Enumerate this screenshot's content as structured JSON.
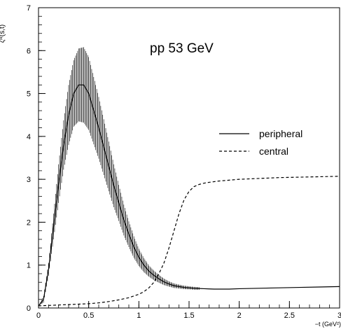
{
  "chart_data": {
    "type": "line",
    "title": "",
    "annotation": "pp 53 GeV",
    "xlabel": "−t (GeV²)",
    "ylabel": "ζᴿ(s,t)",
    "xlim": [
      0,
      3
    ],
    "ylim": [
      0,
      7
    ],
    "x_ticks": [
      0,
      0.5,
      1,
      1.5,
      2,
      2.5,
      3
    ],
    "x_tick_labels": [
      "0",
      "0.5",
      "1",
      "1.5",
      "2",
      "2.5",
      "3"
    ],
    "y_ticks": [
      0,
      1,
      2,
      3,
      4,
      5,
      6,
      7
    ],
    "y_tick_labels": [
      "0",
      "1",
      "2",
      "3",
      "4",
      "5",
      "6",
      "7"
    ],
    "grid": false,
    "legend_position": "center-right",
    "series": [
      {
        "name": "peripheral",
        "style": "solid",
        "color": "#000000",
        "x": [
          0.0,
          0.05,
          0.1,
          0.15,
          0.2,
          0.25,
          0.3,
          0.35,
          0.4,
          0.45,
          0.5,
          0.55,
          0.6,
          0.65,
          0.7,
          0.75,
          0.8,
          0.85,
          0.9,
          0.95,
          1.0,
          1.05,
          1.1,
          1.15,
          1.2,
          1.25,
          1.3,
          1.35,
          1.4,
          1.45,
          1.5,
          1.55,
          1.6,
          1.65,
          1.7,
          1.75,
          1.8,
          1.85,
          1.9,
          2.0,
          2.2,
          2.4,
          2.6,
          2.8,
          3.0
        ],
        "y": [
          0.05,
          0.2,
          0.9,
          1.9,
          2.9,
          3.8,
          4.5,
          5.0,
          5.2,
          5.2,
          5.0,
          4.6,
          4.2,
          3.75,
          3.3,
          2.85,
          2.45,
          2.05,
          1.72,
          1.42,
          1.18,
          1.0,
          0.86,
          0.76,
          0.68,
          0.61,
          0.56,
          0.52,
          0.5,
          0.48,
          0.47,
          0.46,
          0.455,
          0.45,
          0.445,
          0.44,
          0.44,
          0.44,
          0.44,
          0.45,
          0.46,
          0.47,
          0.48,
          0.49,
          0.5
        ],
        "error_bars": {
          "x_range": [
            0.02,
            1.6
          ],
          "step": 0.01,
          "half_width": [
            [
              0.0,
              0.0
            ],
            [
              0.1,
              0.15
            ],
            [
              0.2,
              0.45
            ],
            [
              0.3,
              0.7
            ],
            [
              0.4,
              0.85
            ],
            [
              0.45,
              0.88
            ],
            [
              0.5,
              0.85
            ],
            [
              0.6,
              0.72
            ],
            [
              0.7,
              0.58
            ],
            [
              0.8,
              0.42
            ],
            [
              0.9,
              0.3
            ],
            [
              1.0,
              0.2
            ],
            [
              1.1,
              0.13
            ],
            [
              1.2,
              0.09
            ],
            [
              1.3,
              0.06
            ],
            [
              1.4,
              0.045
            ],
            [
              1.5,
              0.035
            ],
            [
              1.6,
              0.03
            ]
          ]
        }
      },
      {
        "name": "central",
        "style": "dashed",
        "color": "#000000",
        "x": [
          0.0,
          0.1,
          0.2,
          0.3,
          0.4,
          0.5,
          0.6,
          0.7,
          0.8,
          0.9,
          1.0,
          1.05,
          1.1,
          1.15,
          1.2,
          1.25,
          1.3,
          1.35,
          1.4,
          1.45,
          1.5,
          1.55,
          1.6,
          1.65,
          1.7,
          1.8,
          1.9,
          2.0,
          2.2,
          2.4,
          2.6,
          2.8,
          3.0
        ],
        "y": [
          0.05,
          0.06,
          0.07,
          0.08,
          0.09,
          0.1,
          0.12,
          0.15,
          0.19,
          0.24,
          0.32,
          0.38,
          0.47,
          0.6,
          0.8,
          1.05,
          1.4,
          1.8,
          2.2,
          2.52,
          2.72,
          2.83,
          2.88,
          2.91,
          2.93,
          2.96,
          2.98,
          3.0,
          3.02,
          3.04,
          3.05,
          3.06,
          3.07
        ]
      }
    ]
  }
}
